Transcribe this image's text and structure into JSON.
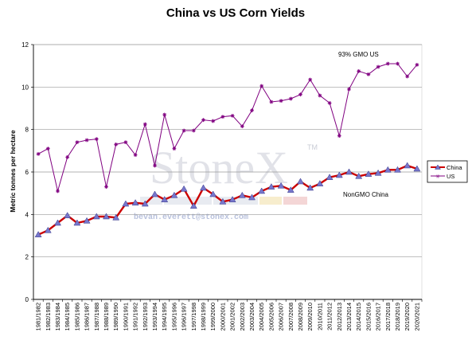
{
  "chart_data": {
    "type": "line",
    "title": "China vs US Corn Yields",
    "xlabel": "",
    "ylabel": "Metric tonnes per hectare",
    "ylim": [
      0,
      12
    ],
    "yticks": [
      "0",
      "2",
      "4",
      "6",
      "8",
      "10",
      "12"
    ],
    "grid": true,
    "legend_position": "right",
    "categories": [
      "1981/1982",
      "1982/1983",
      "1983/1984",
      "1984/1985",
      "1985/1986",
      "1986/1987",
      "1987/1988",
      "1988/1989",
      "1989/1990",
      "1990/1991",
      "1991/1992",
      "1992/1993",
      "1993/1994",
      "1994/1995",
      "1995/1996",
      "1996/1997",
      "1997/1998",
      "1998/1999",
      "1999/2000",
      "2000/2001",
      "2001/2002",
      "2002/2003",
      "2003/2004",
      "2004/2005",
      "2005/2006",
      "2006/2007",
      "2007/2008",
      "2008/2009",
      "2009/2010",
      "2010/2011",
      "2011/2012",
      "2012/2013",
      "2013/2014",
      "2014/2015",
      "2015/2016",
      "2016/2017",
      "2017/2018",
      "2018/2019",
      "2019/2020",
      "2020/2021"
    ],
    "series": [
      {
        "name": "China",
        "color": "#cc0000",
        "marker": "triangle",
        "marker_color": "#7777cc",
        "values": [
          3.05,
          3.25,
          3.6,
          3.95,
          3.6,
          3.7,
          3.9,
          3.9,
          3.85,
          4.5,
          4.55,
          4.5,
          4.95,
          4.7,
          4.9,
          5.2,
          4.4,
          5.25,
          4.95,
          4.6,
          4.7,
          4.9,
          4.8,
          5.1,
          5.3,
          5.35,
          5.15,
          5.55,
          5.25,
          5.45,
          5.75,
          5.85,
          6.0,
          5.8,
          5.9,
          5.95,
          6.1,
          6.1,
          6.3,
          6.15
        ]
      },
      {
        "name": "US",
        "color": "#800080",
        "marker": "star",
        "values": [
          6.85,
          7.1,
          5.1,
          6.7,
          7.4,
          7.5,
          7.55,
          5.3,
          7.3,
          7.4,
          6.8,
          8.25,
          6.3,
          8.7,
          7.1,
          7.95,
          7.95,
          8.45,
          8.4,
          8.6,
          8.65,
          8.15,
          8.9,
          10.05,
          9.3,
          9.35,
          9.45,
          9.65,
          10.35,
          9.6,
          9.25,
          7.7,
          9.9,
          10.75,
          10.6,
          10.95,
          11.1,
          11.1,
          10.5,
          11.05
        ]
      }
    ],
    "annotations": [
      "93% GMO US",
      "NonGMO China"
    ]
  },
  "watermark": {
    "brand": "StoneX",
    "trademark": "TM",
    "email": "bevan.everett@stonex.com"
  }
}
